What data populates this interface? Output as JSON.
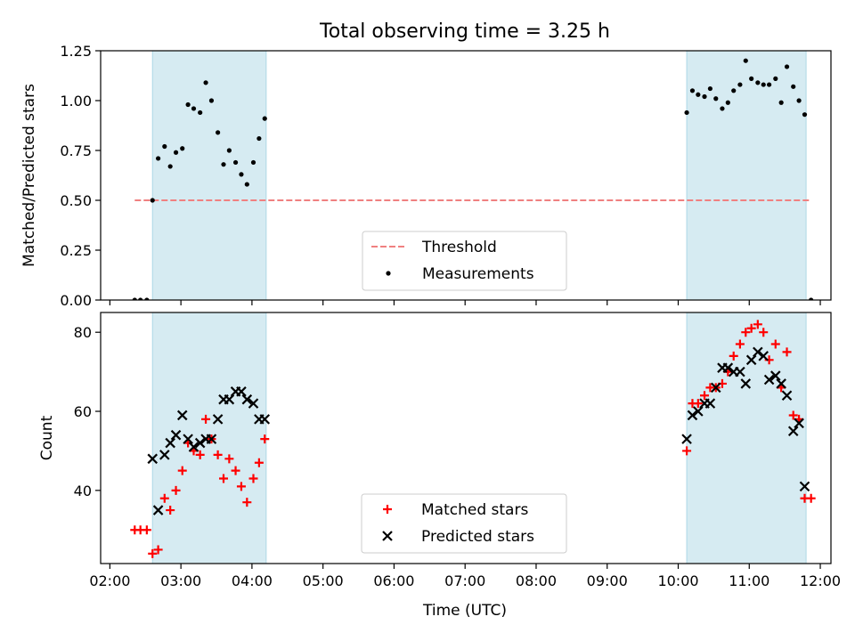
{
  "chart_data": {
    "type": "scatter",
    "title": "Total observing time = 3.25 h",
    "xlabel": "Time (UTC)",
    "x_tick_labels": [
      "02:00",
      "03:00",
      "04:00",
      "05:00",
      "06:00",
      "07:00",
      "08:00",
      "09:00",
      "10:00",
      "11:00",
      "12:00"
    ],
    "xlim_hours": [
      1.87,
      12.15
    ],
    "observing_windows_hours": [
      [
        2.6,
        4.2
      ],
      [
        10.12,
        11.8
      ]
    ],
    "window_color": "#add8e6",
    "panels": [
      {
        "name": "ratio",
        "ylabel": "Matched/Predicted stars",
        "ylim": [
          0,
          1.25
        ],
        "yticks": [
          0.0,
          0.25,
          0.5,
          0.75,
          1.0,
          1.25
        ],
        "ytick_labels": [
          "0.00",
          "0.25",
          "0.50",
          "0.75",
          "1.00",
          "1.25"
        ],
        "legend": {
          "location": "lower center",
          "entries": [
            "Threshold",
            "Measurements"
          ]
        },
        "threshold": {
          "name": "Threshold",
          "value": 0.5,
          "x_range_hours": [
            2.35,
            11.85
          ],
          "color": "#f08080",
          "style": "dashed"
        },
        "series": [
          {
            "name": "Measurements",
            "marker": "dot",
            "color": "#000000",
            "points": [
              [
                2.35,
                0.0
              ],
              [
                2.43,
                0.0
              ],
              [
                2.52,
                0.0
              ],
              [
                2.6,
                0.5
              ],
              [
                2.68,
                0.71
              ],
              [
                2.77,
                0.77
              ],
              [
                2.85,
                0.67
              ],
              [
                2.93,
                0.74
              ],
              [
                3.02,
                0.76
              ],
              [
                3.1,
                0.98
              ],
              [
                3.18,
                0.96
              ],
              [
                3.27,
                0.94
              ],
              [
                3.35,
                1.09
              ],
              [
                3.43,
                1.0
              ],
              [
                3.52,
                0.84
              ],
              [
                3.6,
                0.68
              ],
              [
                3.68,
                0.75
              ],
              [
                3.77,
                0.69
              ],
              [
                3.85,
                0.63
              ],
              [
                3.93,
                0.58
              ],
              [
                4.02,
                0.69
              ],
              [
                4.1,
                0.81
              ],
              [
                4.18,
                0.91
              ],
              [
                10.12,
                0.94
              ],
              [
                10.2,
                1.05
              ],
              [
                10.28,
                1.03
              ],
              [
                10.37,
                1.02
              ],
              [
                10.45,
                1.06
              ],
              [
                10.53,
                1.01
              ],
              [
                10.62,
                0.96
              ],
              [
                10.7,
                0.99
              ],
              [
                10.78,
                1.05
              ],
              [
                10.87,
                1.08
              ],
              [
                10.95,
                1.2
              ],
              [
                11.03,
                1.11
              ],
              [
                11.12,
                1.09
              ],
              [
                11.2,
                1.08
              ],
              [
                11.28,
                1.08
              ],
              [
                11.37,
                1.11
              ],
              [
                11.45,
                0.99
              ],
              [
                11.53,
                1.17
              ],
              [
                11.62,
                1.07
              ],
              [
                11.7,
                1.0
              ],
              [
                11.78,
                0.93
              ],
              [
                11.87,
                0.0
              ]
            ]
          }
        ]
      },
      {
        "name": "count",
        "ylabel": "Count",
        "ylim": [
          21.5,
          85
        ],
        "yticks": [
          40,
          60,
          80
        ],
        "ytick_labels": [
          "40",
          "60",
          "80"
        ],
        "legend": {
          "location": "lower center",
          "entries": [
            "Matched stars",
            "Predicted stars"
          ]
        },
        "series": [
          {
            "name": "Matched stars",
            "marker": "plus",
            "color": "#ff0000",
            "points": [
              [
                2.35,
                30
              ],
              [
                2.43,
                30
              ],
              [
                2.52,
                30
              ],
              [
                2.6,
                24
              ],
              [
                2.68,
                25
              ],
              [
                2.77,
                38
              ],
              [
                2.85,
                35
              ],
              [
                2.93,
                40
              ],
              [
                3.02,
                45
              ],
              [
                3.1,
                52
              ],
              [
                3.18,
                50
              ],
              [
                3.27,
                49
              ],
              [
                3.35,
                58
              ],
              [
                3.43,
                53
              ],
              [
                3.52,
                49
              ],
              [
                3.6,
                43
              ],
              [
                3.68,
                48
              ],
              [
                3.77,
                45
              ],
              [
                3.85,
                41
              ],
              [
                3.93,
                37
              ],
              [
                4.02,
                43
              ],
              [
                4.1,
                47
              ],
              [
                4.18,
                53
              ],
              [
                10.12,
                50
              ],
              [
                10.2,
                62
              ],
              [
                10.28,
                62
              ],
              [
                10.37,
                64
              ],
              [
                10.45,
                66
              ],
              [
                10.53,
                66
              ],
              [
                10.62,
                67
              ],
              [
                10.7,
                70
              ],
              [
                10.78,
                74
              ],
              [
                10.87,
                77
              ],
              [
                10.95,
                80
              ],
              [
                11.03,
                81
              ],
              [
                11.12,
                82
              ],
              [
                11.2,
                80
              ],
              [
                11.28,
                73
              ],
              [
                11.37,
                77
              ],
              [
                11.45,
                66
              ],
              [
                11.53,
                75
              ],
              [
                11.62,
                59
              ],
              [
                11.7,
                58
              ],
              [
                11.78,
                38
              ],
              [
                11.87,
                38
              ]
            ]
          },
          {
            "name": "Predicted stars",
            "marker": "x",
            "color": "#000000",
            "points": [
              [
                2.6,
                48
              ],
              [
                2.68,
                35
              ],
              [
                2.77,
                49
              ],
              [
                2.85,
                52
              ],
              [
                2.93,
                54
              ],
              [
                3.02,
                59
              ],
              [
                3.1,
                53
              ],
              [
                3.18,
                51
              ],
              [
                3.27,
                52
              ],
              [
                3.35,
                53
              ],
              [
                3.43,
                53
              ],
              [
                3.52,
                58
              ],
              [
                3.6,
                63
              ],
              [
                3.68,
                63
              ],
              [
                3.77,
                65
              ],
              [
                3.85,
                65
              ],
              [
                3.93,
                63
              ],
              [
                4.02,
                62
              ],
              [
                4.1,
                58
              ],
              [
                4.18,
                58
              ],
              [
                10.12,
                53
              ],
              [
                10.2,
                59
              ],
              [
                10.28,
                60
              ],
              [
                10.37,
                62
              ],
              [
                10.45,
                62
              ],
              [
                10.53,
                66
              ],
              [
                10.62,
                71
              ],
              [
                10.7,
                71
              ],
              [
                10.78,
                70
              ],
              [
                10.87,
                70
              ],
              [
                10.95,
                67
              ],
              [
                11.03,
                73
              ],
              [
                11.12,
                75
              ],
              [
                11.2,
                74
              ],
              [
                11.28,
                68
              ],
              [
                11.37,
                69
              ],
              [
                11.45,
                67
              ],
              [
                11.53,
                64
              ],
              [
                11.62,
                55
              ],
              [
                11.7,
                57
              ],
              [
                11.78,
                41
              ]
            ]
          }
        ]
      }
    ]
  }
}
